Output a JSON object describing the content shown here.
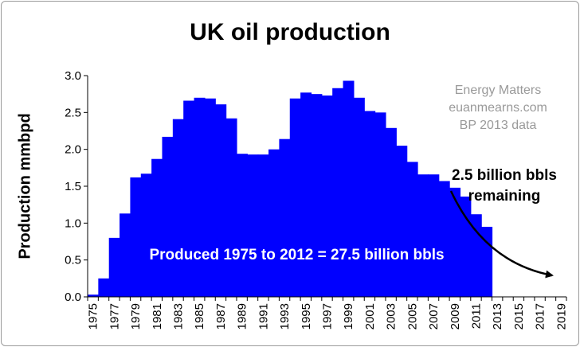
{
  "chart_data": {
    "type": "bar",
    "title": "UK oil production",
    "ylabel": "Production mmbpd",
    "xlabel": "",
    "ylim": [
      0,
      3.0
    ],
    "yticks": [
      "0.0",
      "0.5",
      "1.0",
      "1.5",
      "2.0",
      "2.5",
      "3.0"
    ],
    "xticks": [
      "1975",
      "1977",
      "1979",
      "1981",
      "1983",
      "1985",
      "1987",
      "1989",
      "1991",
      "1993",
      "1995",
      "1997",
      "1999",
      "2001",
      "2003",
      "2005",
      "2007",
      "2009",
      "2011",
      "2013",
      "2015",
      "2017",
      "2019"
    ],
    "x_range": [
      1975,
      2020
    ],
    "bar_color": "#0000ff",
    "grid": false,
    "categories": [
      1975,
      1976,
      1977,
      1978,
      1979,
      1980,
      1981,
      1982,
      1983,
      1984,
      1985,
      1986,
      1987,
      1988,
      1989,
      1990,
      1991,
      1992,
      1993,
      1994,
      1995,
      1996,
      1997,
      1998,
      1999,
      2000,
      2001,
      2002,
      2003,
      2004,
      2005,
      2006,
      2007,
      2008,
      2009,
      2010,
      2011,
      2012
    ],
    "values": [
      0.03,
      0.25,
      0.8,
      1.13,
      1.62,
      1.67,
      1.87,
      2.17,
      2.41,
      2.66,
      2.7,
      2.69,
      2.61,
      2.42,
      1.94,
      1.93,
      1.93,
      2.0,
      2.14,
      2.69,
      2.77,
      2.75,
      2.73,
      2.83,
      2.93,
      2.7,
      2.52,
      2.5,
      2.29,
      2.05,
      1.83,
      1.66,
      1.66,
      1.57,
      1.48,
      1.36,
      1.12,
      0.95
    ],
    "annotations": {
      "watermark": [
        "Energy Matters",
        "euanmearns.com",
        "BP 2013 data"
      ],
      "remaining": [
        "2.5 billion bbls",
        "remaining"
      ],
      "produced": "Produced 1975 to 2012 = 27.5 billion bbls"
    }
  }
}
